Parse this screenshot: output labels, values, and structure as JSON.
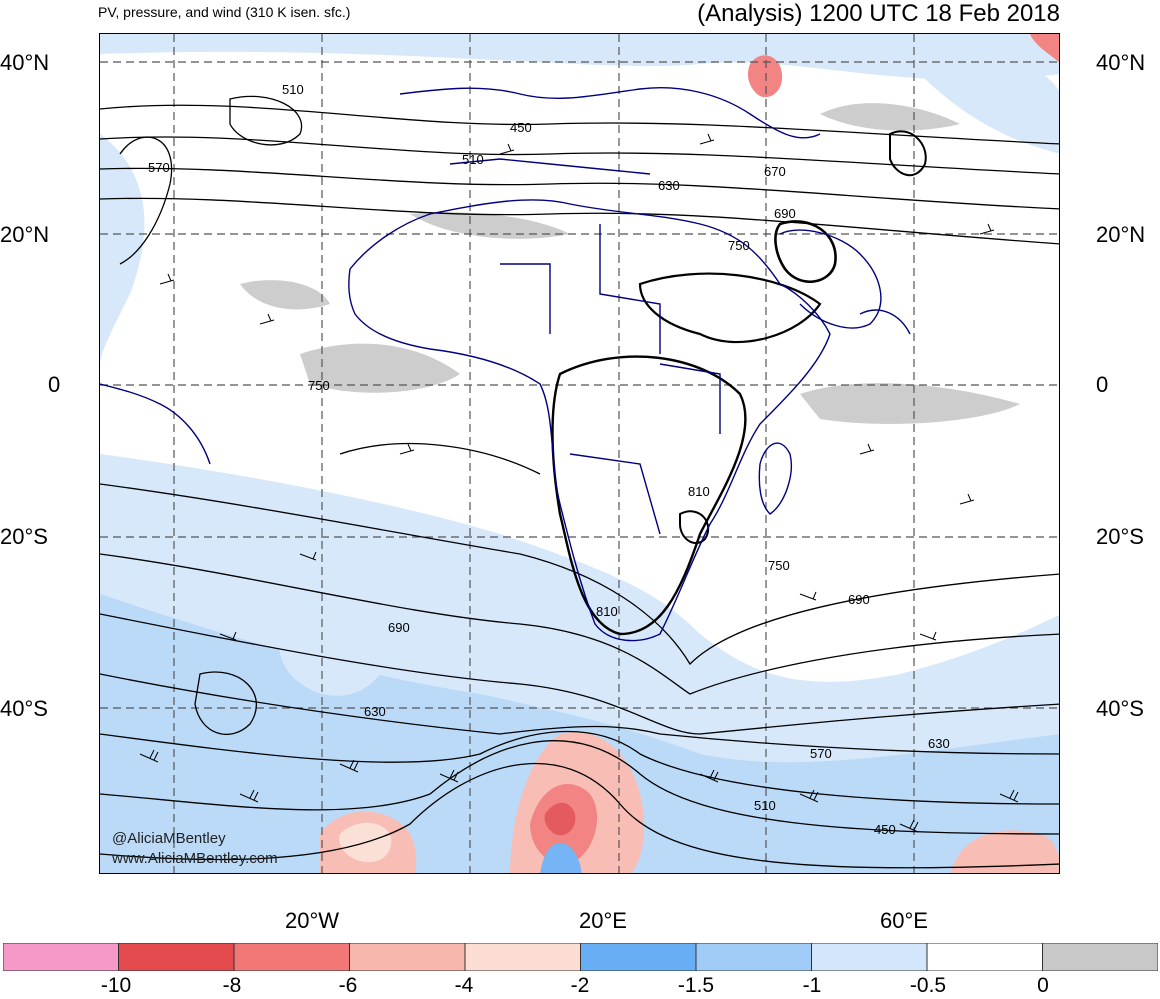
{
  "header": {
    "left_title": "PV, pressure, and wind (310 K isen. sfc.)",
    "right_title": "(Analysis) 1200 UTC 18 Feb 2018"
  },
  "map": {
    "lat_labels_left": [
      "40°N",
      "20°N",
      "0",
      "20°S",
      "40°S"
    ],
    "lat_labels_right": [
      "40°N",
      "20°N",
      "0",
      "20°S",
      "40°S"
    ],
    "lon_labels": [
      "20°W",
      "20°E",
      "60°E"
    ],
    "contour_labels": [
      "510",
      "570",
      "450",
      "510",
      "630",
      "670",
      "690",
      "750",
      "750",
      "810",
      "750",
      "810",
      "690",
      "690",
      "630",
      "570",
      "510",
      "450",
      "630"
    ],
    "credits": [
      "@AliciaMBentley",
      "www.AliciaMBentley.com"
    ],
    "colors": {
      "land_outline": "#000080",
      "contour": "#000000",
      "grid": "#555555"
    }
  },
  "colorbar": {
    "ticks": [
      "-10",
      "-8",
      "-6",
      "-4",
      "-2",
      "-1.5",
      "-1",
      "-0.5",
      "0"
    ],
    "bins": [
      {
        "color": "#f59ac8"
      },
      {
        "color": "#e24a4e"
      },
      {
        "color": "#f27777"
      },
      {
        "color": "#f8b7ad"
      },
      {
        "color": "#fbddd4"
      },
      {
        "color": "#68aef5"
      },
      {
        "color": "#a0ccf7"
      },
      {
        "color": "#d3e6fb"
      },
      {
        "color": "#ffffff"
      },
      {
        "color": "#c8c8c8"
      }
    ]
  }
}
